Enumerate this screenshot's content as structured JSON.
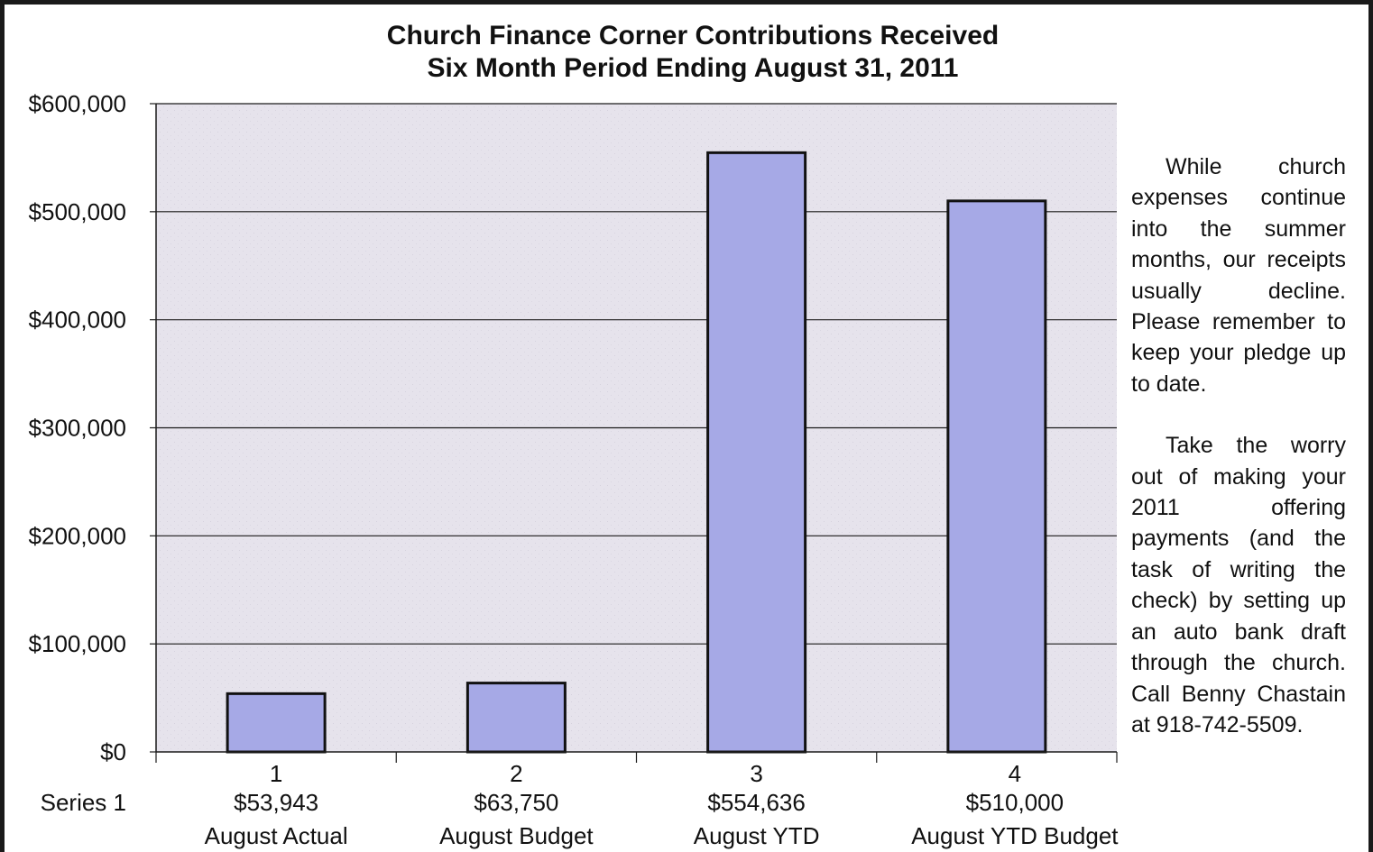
{
  "chart_data": {
    "type": "bar",
    "title": [
      "Church Finance Corner Contributions Received",
      "Six Month Period Ending August 31, 2011"
    ],
    "series_label": "Series 1",
    "categories": [
      "1",
      "2",
      "3",
      "4"
    ],
    "value_labels": [
      "$53,943",
      "$63,750",
      "$554,636",
      "$510,000"
    ],
    "category_names": [
      "August Actual",
      "August Budget",
      "August YTD",
      "August YTD Budget"
    ],
    "series": [
      {
        "values": [
          53943,
          63750,
          554636,
          510000
        ]
      }
    ],
    "y_ticks": [
      "$0",
      "$100,000",
      "$200,000",
      "$300,000",
      "$400,000",
      "$500,000",
      "$600,000"
    ],
    "ylim": [
      0,
      600000
    ],
    "grid": true,
    "colors": {
      "bar_fill": "#a6a9e6",
      "bar_stroke": "#111111",
      "plot_background": "#e6e3ec",
      "gridline": "#1a1a1a",
      "frame": "#1a1a1a"
    }
  },
  "sidebar": {
    "paragraph1": "While church expenses continue into the summer months, our receipts usually decline. Please remember to keep your pledge up to date.",
    "paragraph2": "Take the worry out of making your 2011 offering payments (and the task of writing the check) by setting up an auto bank draft through the church. Call Benny Chastain at 918-742-5509."
  }
}
